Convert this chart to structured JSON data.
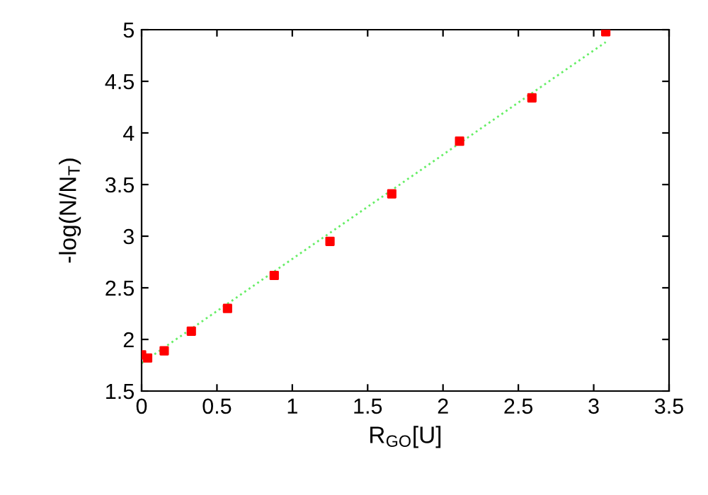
{
  "chart_data": {
    "type": "scatter",
    "xlabel": "R$_{GO}$[U]",
    "ylabel": "-log(N/N$_{T}$)",
    "x": [
      0.0,
      0.04,
      0.15,
      0.33,
      0.57,
      0.88,
      1.25,
      1.66,
      2.11,
      2.59,
      3.08
    ],
    "series": [
      {
        "color": "#ff0000",
        "marker": "square",
        "values": [
          1.85,
          1.82,
          1.89,
          2.08,
          2.3,
          2.62,
          2.95,
          3.41,
          3.92,
          4.34,
          4.98
        ]
      },
      {
        "type": "line",
        "color": "#66ee66",
        "line_style": "dotted",
        "x": [
          0,
          3.08
        ],
        "values": [
          1.77,
          4.88
        ]
      }
    ],
    "xlim": [
      0,
      3.5
    ],
    "xticks": [
      0,
      0.5,
      1,
      1.5,
      2,
      2.5,
      3,
      3.5
    ],
    "ylim": [
      1.5,
      5
    ],
    "yticks": [
      1.5,
      2,
      2.5,
      3,
      3.5,
      4,
      4.5,
      5
    ],
    "grid": false,
    "legend": false
  }
}
